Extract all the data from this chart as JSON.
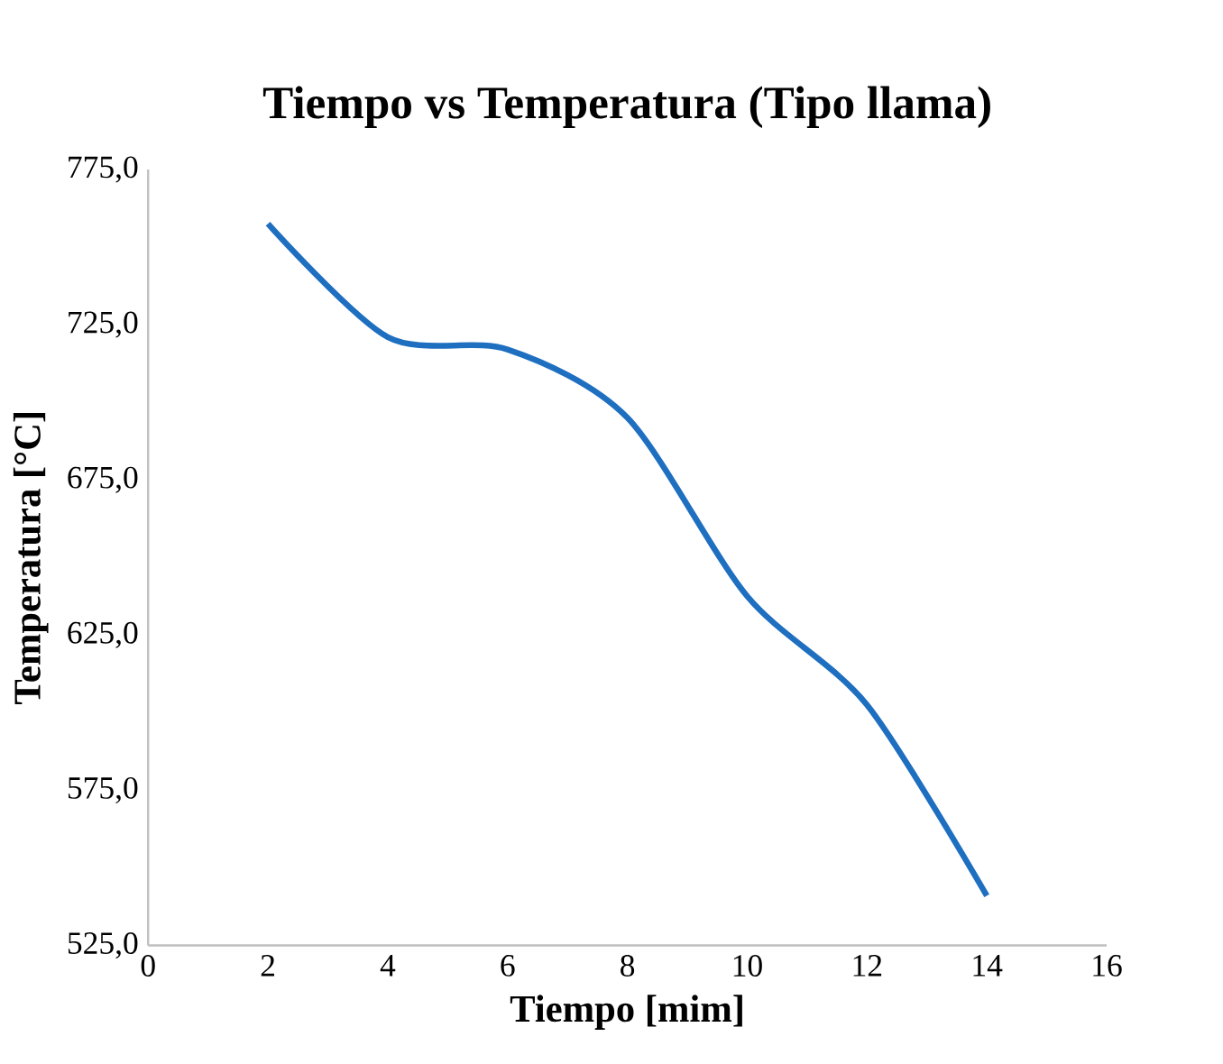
{
  "chart_data": {
    "type": "line",
    "title": "Tiempo vs Temperatura (Tipo llama)",
    "xlabel": "Tiempo [mim]",
    "ylabel": "Temperatura [°C]",
    "x": [
      2,
      4,
      6,
      8,
      10,
      12,
      14
    ],
    "series": [
      {
        "color": "#1f6fc0",
        "values": [
          757.5,
          721,
          717,
          695,
          637.5,
          602.5,
          541
        ]
      }
    ],
    "xlim": [
      0,
      16
    ],
    "xticks": [
      0,
      2,
      4,
      6,
      8,
      10,
      12,
      14,
      16
    ],
    "ylim": [
      525,
      775
    ],
    "yticks": [
      {
        "value": 525,
        "label": "525,0"
      },
      {
        "value": 575,
        "label": "575,0"
      },
      {
        "value": 625,
        "label": "625,0"
      },
      {
        "value": 675,
        "label": "675,0"
      },
      {
        "value": 725,
        "label": "725,0"
      },
      {
        "value": 775,
        "label": "775,0"
      }
    ],
    "grid": false,
    "marker": "none",
    "line_style": "solid"
  }
}
